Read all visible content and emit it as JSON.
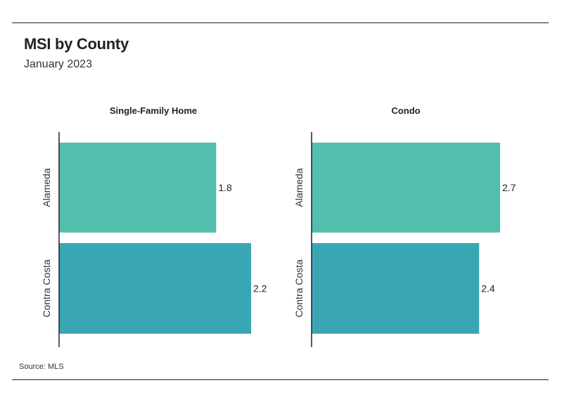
{
  "header": {
    "title": "MSI by County",
    "subtitle": "January 2023"
  },
  "footer": {
    "source": "Source: MLS"
  },
  "colors": {
    "alameda": "#52bfac",
    "contra_costa": "#3aa6b3",
    "axis": "#222222"
  },
  "chart_data": [
    {
      "type": "bar",
      "orientation": "horizontal",
      "title": "Single-Family Home",
      "categories": [
        "Alameda",
        "Contra Costa"
      ],
      "values": [
        1.8,
        2.2
      ],
      "value_labels": [
        "1.8",
        "2.2"
      ],
      "xlim": [
        0,
        2.2
      ],
      "grid": false
    },
    {
      "type": "bar",
      "orientation": "horizontal",
      "title": "Condo",
      "categories": [
        "Alameda",
        "Contra Costa"
      ],
      "values": [
        2.7,
        2.4
      ],
      "value_labels": [
        "2.7",
        "2.4"
      ],
      "xlim": [
        0,
        2.7
      ],
      "grid": false
    }
  ]
}
